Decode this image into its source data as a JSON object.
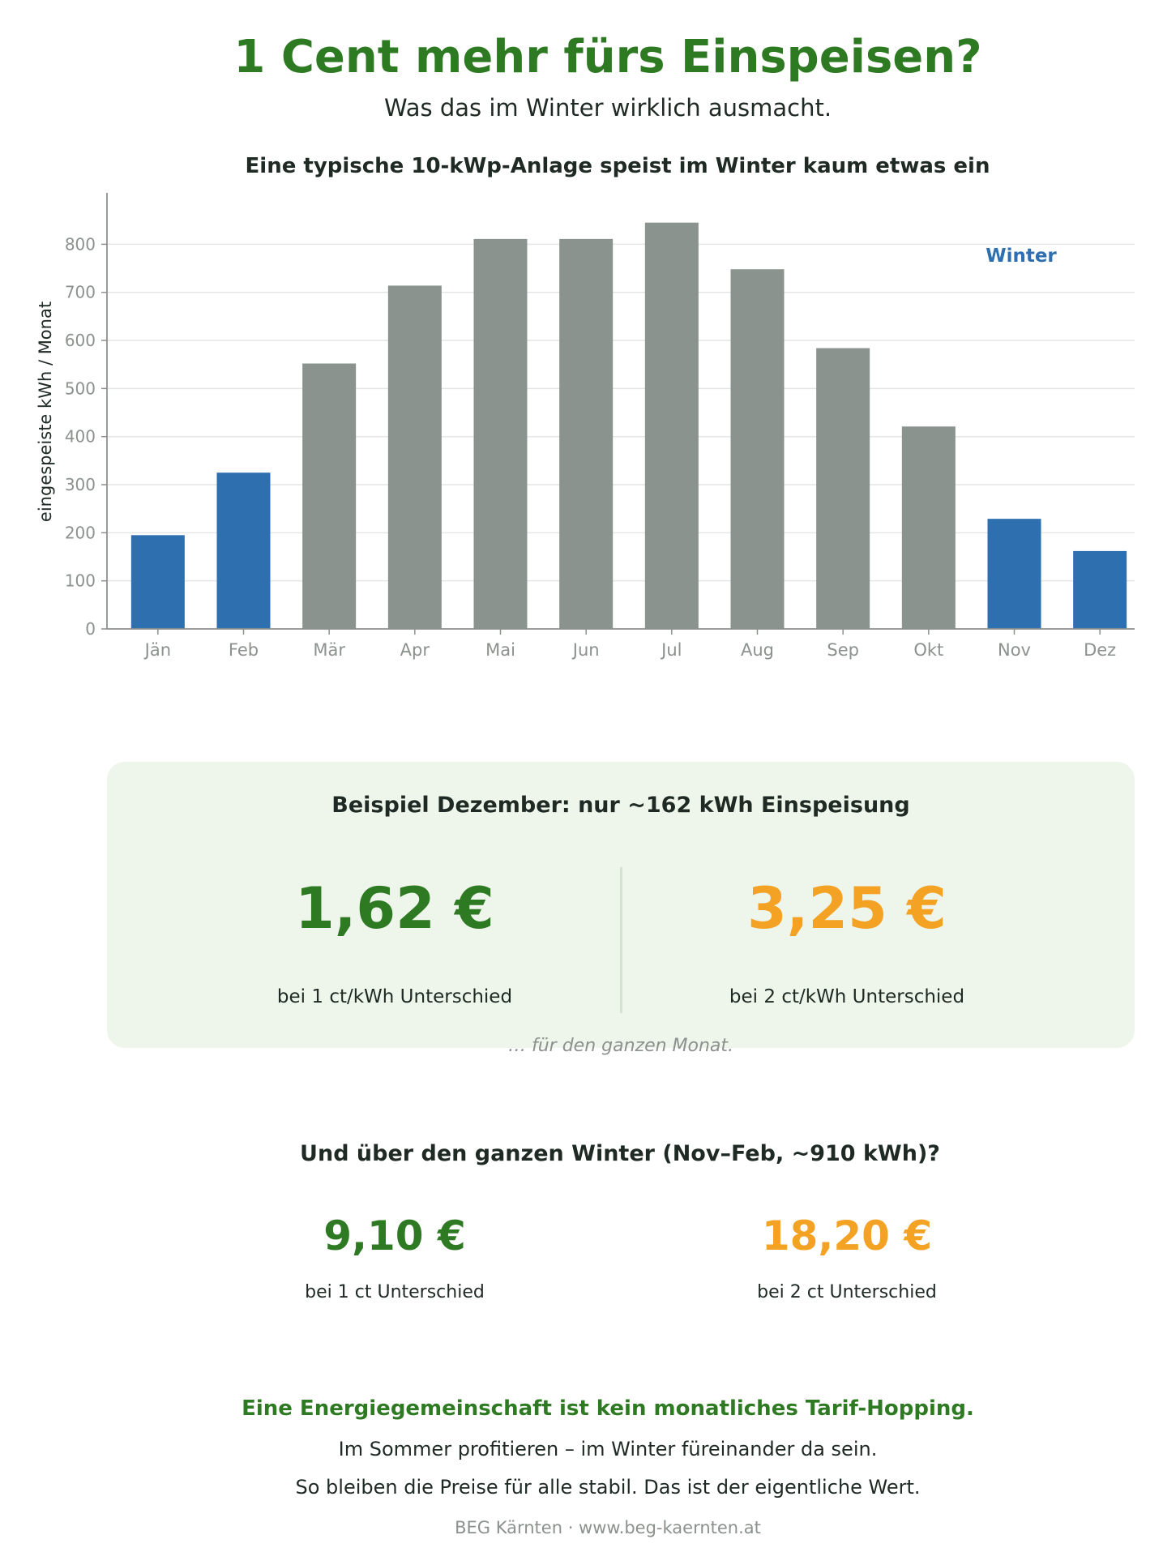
{
  "header": {
    "title": "1 Cent mehr fürs Einspeisen?",
    "subtitle": "Was das im Winter wirklich ausmacht."
  },
  "chart_data": {
    "type": "bar",
    "title": "Eine typische 10-kWp-Anlage speist im Winter kaum etwas ein",
    "xlabel": "",
    "ylabel": "eingespeiste kWh / Monat",
    "categories": [
      "Jän",
      "Feb",
      "Mär",
      "Apr",
      "Mai",
      "Jun",
      "Jul",
      "Aug",
      "Sep",
      "Okt",
      "Nov",
      "Dez"
    ],
    "values": [
      195,
      325,
      552,
      714,
      811,
      811,
      845,
      748,
      584,
      421,
      229,
      162
    ],
    "winter": [
      true,
      true,
      false,
      false,
      false,
      false,
      false,
      false,
      false,
      false,
      true,
      true
    ],
    "ylim": [
      0,
      890
    ],
    "yticks": [
      0,
      100,
      200,
      300,
      400,
      500,
      600,
      700,
      800
    ],
    "grid": true,
    "legend_label": "Winter",
    "legend_position": "top-right",
    "colors": {
      "winter": "#2e6fb0",
      "other": "#8a938e"
    }
  },
  "december": {
    "title": "Beispiel Dezember: nur ~162 kWh Einspeisung",
    "left_value": "1,62 €",
    "left_caption": "bei 1 ct/kWh Unterschied",
    "right_value": "3,25 €",
    "right_caption": "bei 2 ct/kWh Unterschied",
    "note": "… für den ganzen Monat."
  },
  "winter_total": {
    "title": "Und über den ganzen Winter (Nov–Feb, ~910 kWh)?",
    "left_value": "9,10 €",
    "left_caption": "bei 1 ct Unterschied",
    "right_value": "18,20 €",
    "right_caption": "bei 2 ct Unterschied"
  },
  "closing": {
    "title": "Eine Energiegemeinschaft ist kein monatliches Tarif-Hopping.",
    "line1": "Im Sommer profitieren – im Winter füreinander da sein.",
    "line2": "So bleiben die Preise für alle stabil. Das ist der eigentliche Wert."
  },
  "footer": "BEG Kärnten  ·  www.beg-kaernten.at",
  "colors": {
    "green": "#2e7a22",
    "orange": "#f4a224",
    "panel_bg": "#eef5ea"
  }
}
